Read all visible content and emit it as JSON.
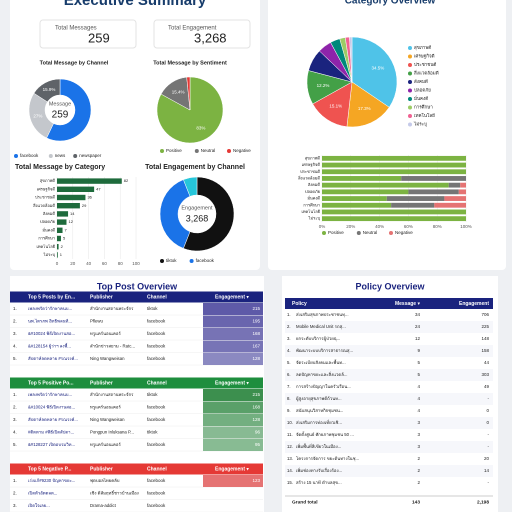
{
  "summary": {
    "title": "Executive Summary",
    "kpis": [
      {
        "label": "Total Messages",
        "value": "259"
      },
      {
        "label": "Total Engagement",
        "value": "3,268"
      }
    ]
  },
  "chart_data": [
    {
      "type": "donut",
      "title": "Total Message by Channel",
      "center_label": "Message",
      "center_value": "259",
      "categories": [
        "facebook",
        "news",
        "newspaper"
      ],
      "values": [
        57.1,
        27,
        15.9
      ],
      "value_labels": [
        null,
        "27%",
        "15.9%"
      ],
      "colors": [
        "#1a73e8",
        "#c4c7cc",
        "#5f6368"
      ]
    },
    {
      "type": "pie",
      "title": "Total Message by Sentiment",
      "categories": [
        "Positive",
        "Neutral",
        "Negative"
      ],
      "values": [
        83,
        15.4,
        1.6
      ],
      "value_labels": [
        "83%",
        "15.4%",
        null
      ],
      "colors": [
        "#7cb342",
        "#757575",
        "#e53935"
      ]
    },
    {
      "type": "hbar",
      "title": "Total Message by Category",
      "categories": [
        "สุขภาพดี",
        "เศรษฐกิจดี",
        "ประชาชนดี",
        "สิ่งแวดล้อมดี",
        "สังคมดี",
        "ปลอดภัย",
        "มั่นคงดี",
        "การศึกษา",
        "เทคโนโลยี",
        "ไม่ระบุ"
      ],
      "values": [
        82,
        47,
        36,
        29,
        14,
        12,
        7,
        5,
        2,
        1
      ],
      "color": "#1e6b3c",
      "xlim": [
        0,
        100
      ],
      "xticks": [
        0,
        20,
        40,
        60,
        80,
        100
      ]
    },
    {
      "type": "donut",
      "title": "Total Engagement by Channel",
      "center_label": "Engagement",
      "center_value": "3,268",
      "categories": [
        "tiktok",
        "facebook",
        null
      ],
      "values": [
        56,
        38,
        6
      ],
      "value_labels": [
        null,
        null,
        null
      ],
      "colors": [
        "#111111",
        "#1a73e8",
        "#26c6da"
      ]
    },
    {
      "type": "pie",
      "title": "Category Overview",
      "categories": [
        "สุขภาพดี",
        "เศรษฐกิจดี",
        "ประชาชนดี",
        "สิ่งแวดล้อมดี",
        "สังคมดี",
        "ปลอดภัย",
        "มั่นคงดี",
        "การศึกษา",
        "เทคโนโลยี",
        "ไม่ระบุ"
      ],
      "values": [
        34.5,
        17.3,
        15.1,
        12.2,
        8,
        5,
        3.5,
        2,
        1.5,
        0.9
      ],
      "value_labels": [
        "34.5%",
        "17.3%",
        "15.1%",
        "12.2%",
        null,
        null,
        null,
        null,
        null,
        null
      ],
      "colors": [
        "#4fc3e8",
        "#f5a623",
        "#ef5350",
        "#43a047",
        "#1a237e",
        "#8e24aa",
        "#00897b",
        "#9ccc65",
        "#f06292",
        "#c5cae9"
      ]
    },
    {
      "type": "stacked_hbar",
      "categories": [
        "สุขภาพดี",
        "เศรษฐกิจดี",
        "ประชาชนดี",
        "สิ่งแวดล้อมดี",
        "สังคมดี",
        "ปลอดภัย",
        "มั่นคงดี",
        "การศึกษา",
        "เทคโนโลยี",
        "ไม่ระบุ"
      ],
      "series": [
        {
          "name": "Positive",
          "color": "#7cb342",
          "values": [
            100,
            100,
            100,
            55,
            88,
            60,
            45,
            48,
            100,
            100
          ]
        },
        {
          "name": "Neutral",
          "color": "#757575",
          "values": [
            0,
            0,
            0,
            45,
            8,
            35,
            40,
            30,
            0,
            0
          ]
        },
        {
          "name": "Negative",
          "color": "#e57373",
          "values": [
            0,
            0,
            0,
            0,
            4,
            5,
            15,
            22,
            0,
            0
          ]
        }
      ],
      "xlim": [
        0,
        100
      ],
      "xticks": [
        {
          "value": 0,
          "label": "0%"
        },
        {
          "value": 20,
          "label": "20%"
        },
        {
          "value": 40,
          "label": "40%"
        },
        {
          "value": 60,
          "label": "60%"
        },
        {
          "value": 80,
          "label": "80%"
        },
        {
          "value": 100,
          "label": "100%"
        }
      ]
    }
  ],
  "posts": {
    "title": "Top Post Overview",
    "tables": [
      {
        "header_color": "#1a237e",
        "heat_color": "#5e5aa8",
        "header": [
          "Top 5 Posts by En...",
          "Publisher",
          "Channel",
          "Engagement ▾"
        ],
        "rows": [
          [
            "1.",
            "เพลงพรัดว่ารักษาคนบ...",
            "สำนักงานสถานพระจักร",
            "tiktok",
            215
          ],
          [
            "2.",
            "นพ.ไตรภพ อิทธิพลนที...",
            "Pflewu",
            "facebook",
            195
          ],
          [
            "3.",
            "&#10024 พิธีเปิดงานสอ...",
            "ทรูแคร์นอนเคอร์",
            "facebook",
            168
          ],
          [
            "4.",
            "&#128154 ผู้ว่าฯ ลงพื้...",
            "สำนักข่าวสยาม - Ratc...",
            "facebook",
            167
          ],
          [
            "5.",
            "สัปดาห์ลดหลาย #รณรงค์...",
            "Ning Wangweisan",
            "facebook",
            128
          ]
        ]
      },
      {
        "header_color": "#1e8e3e",
        "heat_color": "#3c8f4e",
        "header": [
          "Top 5 Positive Po...",
          "Publisher",
          "Channel",
          "Engagement ▾"
        ],
        "rows": [
          [
            "1.",
            "เพลงพรัดว่ารักษาคนบ...",
            "สำนักงานสถานพระจักร",
            "tiktok",
            215
          ],
          [
            "2.",
            "&#10024 พิธีเปิดงานสอ...",
            "ทรูแคร์นอนเคอร์",
            "facebook",
            168
          ],
          [
            "3.",
            "สัปดาห์ลดหลาย #รณรงค์...",
            "Ning Wangweisan",
            "facebook",
            128
          ],
          [
            "4.",
            "#ติดตาม #พิธีเปิดสัปดา...",
            "Pongpun Inluksana P...",
            "tiktok",
            96
          ],
          [
            "5.",
            "&#128227 เปิดอบรมวิท...",
            "ทรูแคร์นอนเคอร์",
            "facebook",
            95
          ]
        ]
      },
      {
        "header_color": "#e53935",
        "heat_color": "#e57373",
        "header": [
          "Top 5 Negative P...",
          "Publisher",
          "Channel",
          "Engagement ▾"
        ],
        "rows": [
          [
            "1.",
            "เร่งแก้#9230 ปัญหาขยะ...",
            "ฟุตบอลไทยคลับ",
            "facebook",
            123
          ],
          [
            "2.",
            "เปิดตัวอัตตลด...",
            "เชิง ดีสัมฤทธิ์ชาวบ้านเมือง",
            "facebook",
            "null"
          ],
          [
            "3.",
            "เปิดใจเลย...",
            "Drama-addict",
            "facebook",
            "null"
          ]
        ]
      }
    ]
  },
  "policy": {
    "title": "Policy Overview",
    "header": [
      "Policy",
      "Message ▾",
      "Engagement"
    ],
    "rows": [
      [
        "1.",
        "ส่งเสริมสุขภาพประชาชนทุ...",
        "34",
        "706"
      ],
      [
        "2.",
        "Mobile Medical Unit รถสุ...",
        "24",
        "225"
      ],
      [
        "3.",
        "ยกระดับบริการผู้ป่วยฉุ...",
        "12",
        "148"
      ],
      [
        "4.",
        "พัฒนาระบบบริการสาธารณสุ...",
        "9",
        "158"
      ],
      [
        "5.",
        "จัดระเบียบสังคมและพื้นท...",
        "5",
        "44"
      ],
      [
        "6.",
        "ลดปัญหาขยะและสิ่งแวดล้...",
        "5",
        "303"
      ],
      [
        "7.",
        "การสร้างปัญญาในครัวเรือน...",
        "4",
        "49"
      ],
      [
        "8.",
        "ผู้สูงอายุสุขภาพดีถ้วนห...",
        "4",
        "-"
      ],
      [
        "9.",
        "สนับสนุนวิสาหกิจชุมชน...",
        "4",
        "0"
      ],
      [
        "10.",
        "ส่งเสริมการท่องเที่ยวเชิ...",
        "3",
        "0"
      ],
      [
        "11.",
        "จัดตั้งศูนย์ ศักยภาพชุมชน 50 ...",
        "3",
        "-"
      ],
      [
        "12.",
        "เพิ่มพื้นที่สีเขียวในเมือง...",
        "3",
        "-"
      ],
      [
        "13.",
        "โครงการจัดการ ขยะต้นทางในชุ...",
        "2",
        "20"
      ],
      [
        "14.",
        "เพิ่มช่องทางรับเรื่องร้อง...",
        "2",
        "14"
      ],
      [
        "15.",
        "สร้าง 15 นาที ตำบลสุข...",
        "2",
        "-"
      ]
    ],
    "total": [
      "Grand total",
      "143",
      "2,198"
    ]
  }
}
